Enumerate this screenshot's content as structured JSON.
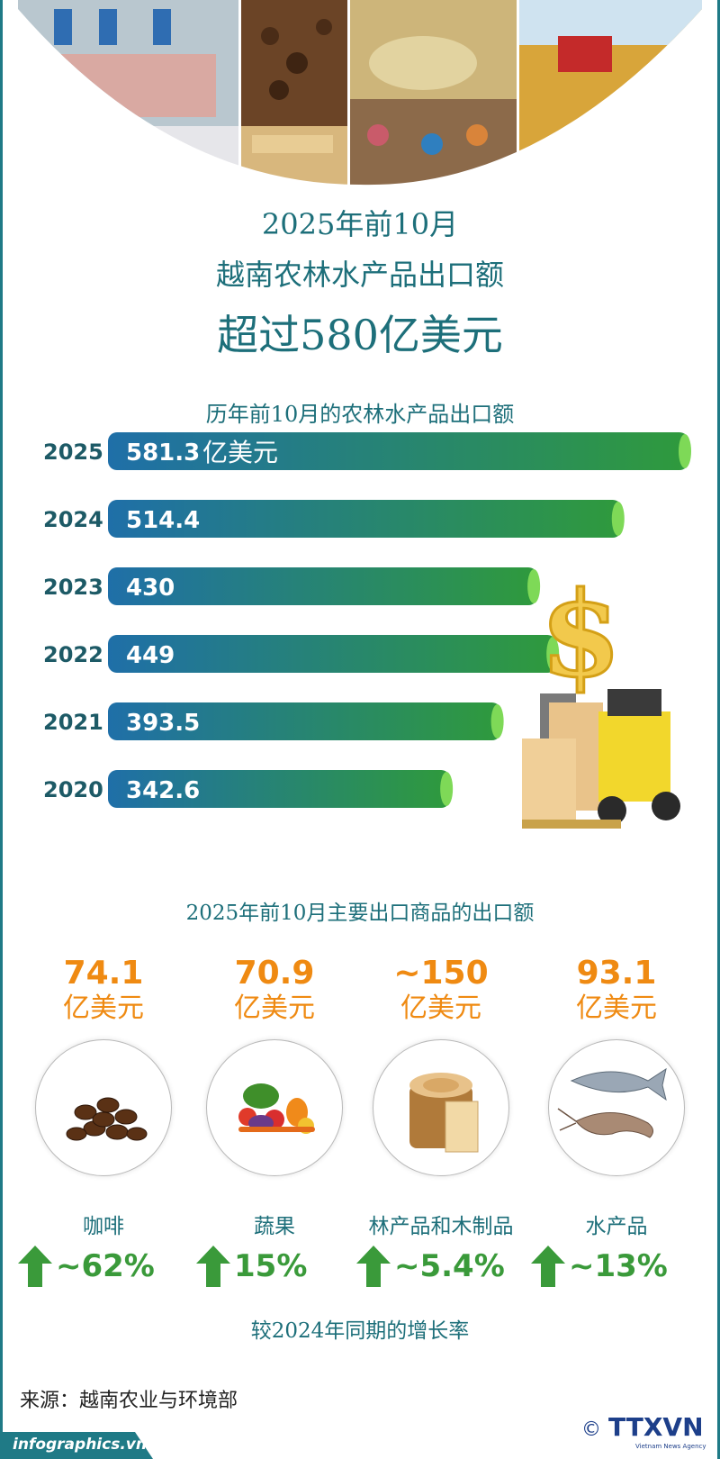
{
  "header": {
    "title_line1": "2025年前10月",
    "title_line2": "越南农林水产品出口额",
    "title_line3": "超过580亿美元"
  },
  "chart_data": {
    "type": "bar",
    "title": "历年前10月的农林水产品出口额",
    "categories": [
      "2025",
      "2024",
      "2023",
      "2022",
      "2021",
      "2020"
    ],
    "values": [
      581.3,
      514.4,
      430,
      449,
      393.5,
      342.6
    ],
    "value_labels": [
      "581.3",
      "514.4",
      "430",
      "449",
      "393.5",
      "342.6"
    ],
    "unit": "亿美元",
    "orientation": "horizontal",
    "colors": {
      "bar_start": "#1f6fa8",
      "bar_end": "#2f9a3c",
      "bar_cap": "#7ed957",
      "year_label": "#1d5a66"
    }
  },
  "commodities": {
    "subtitle": "2025年前10月主要出口商品的出口额",
    "items": [
      {
        "value": "74.1",
        "unit": "亿美元",
        "name": "咖啡",
        "icon": "coffee-beans-icon",
        "growth": "~62%"
      },
      {
        "value": "70.9",
        "unit": "亿美元",
        "name": "蔬果",
        "icon": "vegetables-icon",
        "growth": "15%"
      },
      {
        "value": "~150",
        "unit": "亿美元",
        "name": "林产品和木制品",
        "icon": "wood-stump-icon",
        "growth": "~5.4%"
      },
      {
        "value": "93.1",
        "unit": "亿美元",
        "name": "水产品",
        "icon": "fish-shrimp-icon",
        "growth": "~13%"
      }
    ],
    "growth_caption": "较2024年同期的增长率"
  },
  "footer": {
    "source": "来源：越南农业与环境部",
    "site": "infographics.vn",
    "copyright": "©",
    "logo_text": "TTXVN",
    "logo_sub": "Vietnam News Agency"
  },
  "colors": {
    "teal": "#1d6f7a",
    "orange": "#ef8a12",
    "green": "#3a9a3a"
  }
}
